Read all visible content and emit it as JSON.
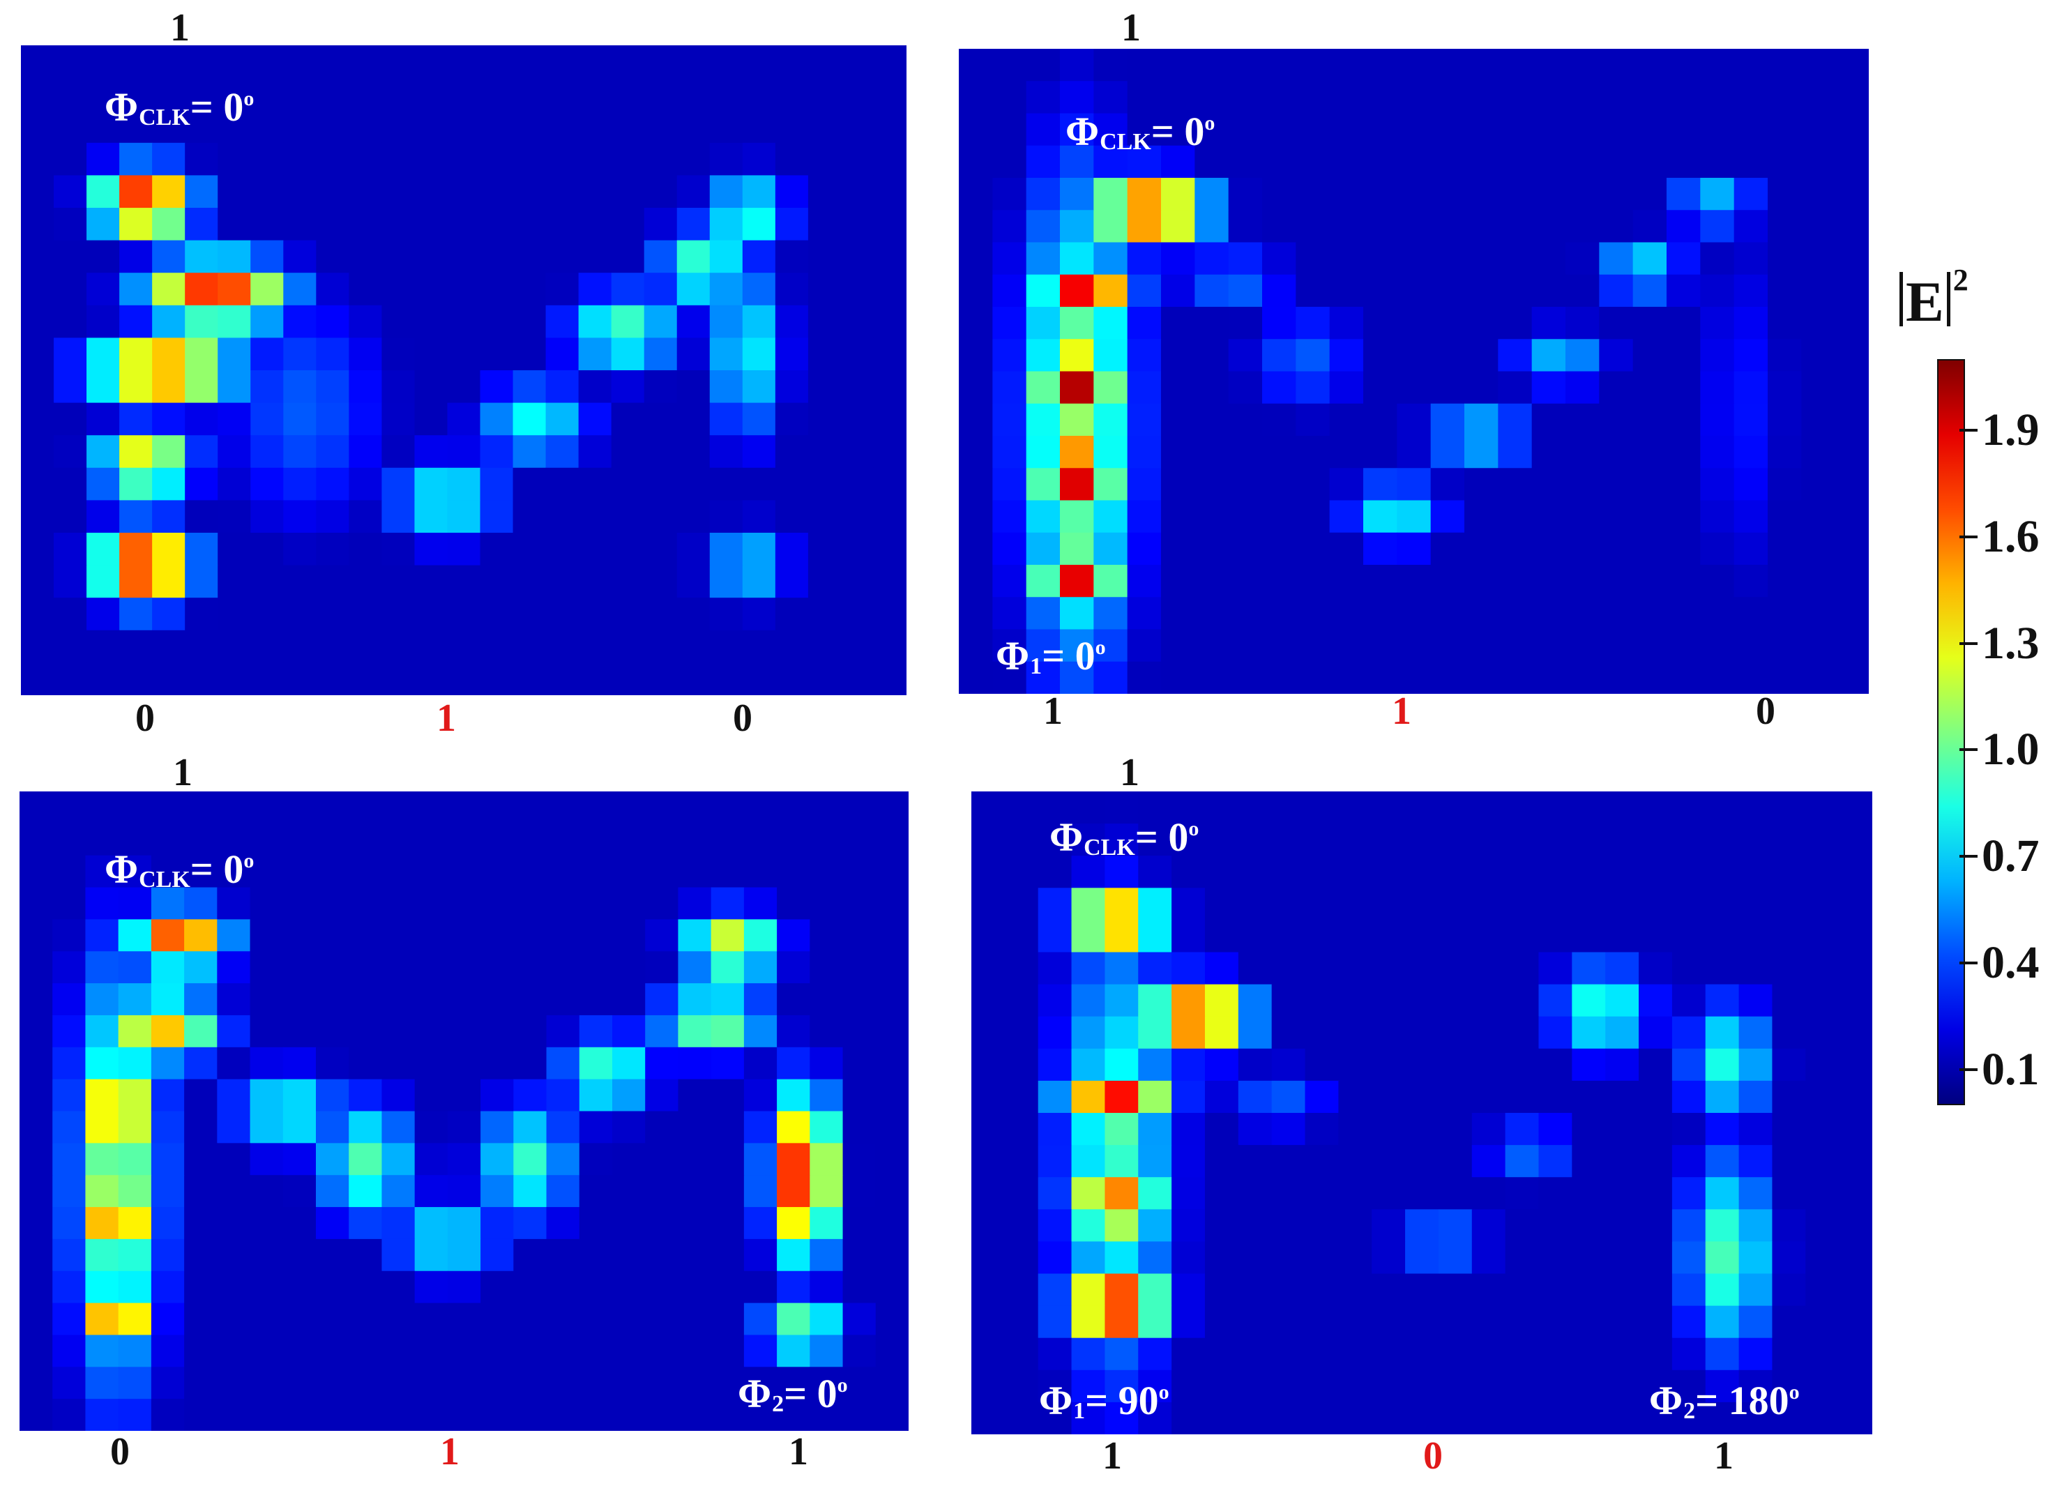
{
  "chart_data": [
    {
      "type": "heatmap",
      "id": "top-left",
      "top_label": "1",
      "bottom_labels": [
        {
          "text": "0",
          "color": "#111111"
        },
        {
          "text": "1",
          "color": "#e11919"
        },
        {
          "text": "0",
          "color": "#111111"
        }
      ],
      "phase_labels": [
        {
          "name": "Φ",
          "sub": "CLK",
          "value": "= 0",
          "deg": "o",
          "anchor": "top-left"
        }
      ],
      "intensity_blobs": [
        {
          "x": 0.14,
          "y": 0.24,
          "rx": 0.05,
          "ry": 0.05,
          "v": 1.9
        },
        {
          "x": 0.22,
          "y": 0.38,
          "rx": 0.075,
          "ry": 0.05,
          "v": 1.8
        },
        {
          "x": 0.16,
          "y": 0.5,
          "rx": 0.075,
          "ry": 0.05,
          "v": 1.75
        },
        {
          "x": 0.14,
          "y": 0.64,
          "rx": 0.05,
          "ry": 0.05,
          "v": 1.4
        },
        {
          "x": 0.14,
          "y": 0.8,
          "rx": 0.05,
          "ry": 0.055,
          "v": 2.0
        },
        {
          "x": 0.32,
          "y": 0.56,
          "rx": 0.09,
          "ry": 0.18,
          "v": 0.45
        },
        {
          "x": 0.48,
          "y": 0.7,
          "rx": 0.06,
          "ry": 0.06,
          "v": 0.85
        },
        {
          "x": 0.58,
          "y": 0.58,
          "rx": 0.06,
          "ry": 0.06,
          "v": 0.8
        },
        {
          "x": 0.68,
          "y": 0.44,
          "rx": 0.06,
          "ry": 0.06,
          "v": 0.95
        },
        {
          "x": 0.77,
          "y": 0.34,
          "rx": 0.05,
          "ry": 0.06,
          "v": 0.95
        },
        {
          "x": 0.82,
          "y": 0.26,
          "rx": 0.045,
          "ry": 0.06,
          "v": 0.9
        },
        {
          "x": 0.82,
          "y": 0.47,
          "rx": 0.04,
          "ry": 0.13,
          "v": 0.8
        },
        {
          "x": 0.82,
          "y": 0.8,
          "rx": 0.045,
          "ry": 0.055,
          "v": 0.75
        }
      ]
    },
    {
      "type": "heatmap",
      "id": "top-right",
      "top_label": "1",
      "bottom_labels": [
        {
          "text": "1",
          "color": "#111111"
        },
        {
          "text": "1",
          "color": "#e11919"
        },
        {
          "text": "0",
          "color": "#111111"
        }
      ],
      "phase_labels": [
        {
          "name": "Φ",
          "sub": "CLK",
          "value": "= 0",
          "deg": "o",
          "anchor": "top-center"
        },
        {
          "name": "Φ",
          "sub": "1",
          "value": "= 0",
          "deg": "o",
          "anchor": "bottom-left"
        }
      ],
      "intensity_blobs": [
        {
          "x": 0.21,
          "y": 0.25,
          "rx": 0.06,
          "ry": 0.05,
          "v": 1.85
        },
        {
          "x": 0.14,
          "y": 0.38,
          "rx": 0.045,
          "ry": 0.05,
          "v": 1.95
        },
        {
          "x": 0.13,
          "y": 0.52,
          "rx": 0.04,
          "ry": 0.06,
          "v": 2.0
        },
        {
          "x": 0.13,
          "y": 0.66,
          "rx": 0.04,
          "ry": 0.06,
          "v": 2.0
        },
        {
          "x": 0.13,
          "y": 0.82,
          "rx": 0.04,
          "ry": 0.05,
          "v": 1.9
        },
        {
          "x": 0.13,
          "y": 0.58,
          "rx": 0.06,
          "ry": 0.36,
          "v": 1.1
        },
        {
          "x": 0.3,
          "y": 0.36,
          "rx": 0.06,
          "ry": 0.05,
          "v": 0.5
        },
        {
          "x": 0.38,
          "y": 0.48,
          "rx": 0.06,
          "ry": 0.08,
          "v": 0.45
        },
        {
          "x": 0.48,
          "y": 0.72,
          "rx": 0.05,
          "ry": 0.05,
          "v": 0.8
        },
        {
          "x": 0.57,
          "y": 0.6,
          "rx": 0.055,
          "ry": 0.05,
          "v": 0.7
        },
        {
          "x": 0.66,
          "y": 0.48,
          "rx": 0.05,
          "ry": 0.045,
          "v": 0.65
        },
        {
          "x": 0.75,
          "y": 0.34,
          "rx": 0.045,
          "ry": 0.045,
          "v": 0.75
        },
        {
          "x": 0.83,
          "y": 0.24,
          "rx": 0.045,
          "ry": 0.04,
          "v": 0.7
        },
        {
          "x": 0.86,
          "y": 0.56,
          "rx": 0.05,
          "ry": 0.28,
          "v": 0.3
        }
      ]
    },
    {
      "type": "heatmap",
      "id": "bottom-left",
      "top_label": "1",
      "bottom_labels": [
        {
          "text": "0",
          "color": "#111111"
        },
        {
          "text": "1",
          "color": "#e11919"
        },
        {
          "text": "1",
          "color": "#111111"
        }
      ],
      "phase_labels": [
        {
          "name": "Φ",
          "sub": "CLK",
          "value": "= 0",
          "deg": "o",
          "anchor": "top-left"
        },
        {
          "name": "Φ",
          "sub": "2",
          "value": "= 0",
          "deg": "o",
          "anchor": "bottom-right"
        }
      ],
      "intensity_blobs": [
        {
          "x": 0.18,
          "y": 0.23,
          "rx": 0.05,
          "ry": 0.045,
          "v": 1.75
        },
        {
          "x": 0.16,
          "y": 0.37,
          "rx": 0.06,
          "ry": 0.05,
          "v": 1.45
        },
        {
          "x": 0.11,
          "y": 0.5,
          "rx": 0.03,
          "ry": 0.055,
          "v": 2.0
        },
        {
          "x": 0.11,
          "y": 0.66,
          "rx": 0.03,
          "ry": 0.055,
          "v": 2.0
        },
        {
          "x": 0.11,
          "y": 0.82,
          "rx": 0.03,
          "ry": 0.04,
          "v": 1.9
        },
        {
          "x": 0.11,
          "y": 0.6,
          "rx": 0.05,
          "ry": 0.32,
          "v": 1.1
        },
        {
          "x": 0.3,
          "y": 0.5,
          "rx": 0.06,
          "ry": 0.06,
          "v": 0.85
        },
        {
          "x": 0.39,
          "y": 0.58,
          "rx": 0.05,
          "ry": 0.09,
          "v": 0.95
        },
        {
          "x": 0.48,
          "y": 0.7,
          "rx": 0.06,
          "ry": 0.06,
          "v": 0.8
        },
        {
          "x": 0.57,
          "y": 0.58,
          "rx": 0.05,
          "ry": 0.09,
          "v": 0.9
        },
        {
          "x": 0.66,
          "y": 0.44,
          "rx": 0.05,
          "ry": 0.06,
          "v": 0.95
        },
        {
          "x": 0.8,
          "y": 0.24,
          "rx": 0.05,
          "ry": 0.05,
          "v": 1.3
        },
        {
          "x": 0.78,
          "y": 0.36,
          "rx": 0.06,
          "ry": 0.05,
          "v": 1.1
        },
        {
          "x": 0.88,
          "y": 0.6,
          "rx": 0.035,
          "ry": 0.12,
          "v": 1.9
        },
        {
          "x": 0.88,
          "y": 0.84,
          "rx": 0.045,
          "ry": 0.05,
          "v": 1.05
        }
      ]
    },
    {
      "type": "heatmap",
      "id": "bottom-right",
      "top_label": "1",
      "bottom_labels": [
        {
          "text": "1",
          "color": "#111111"
        },
        {
          "text": "0",
          "color": "#e11919"
        },
        {
          "text": "1",
          "color": "#111111"
        }
      ],
      "phase_labels": [
        {
          "name": "Φ",
          "sub": "CLK",
          "value": "= 0",
          "deg": "o",
          "anchor": "top-left"
        },
        {
          "name": "Φ",
          "sub": "1",
          "value": "= 90",
          "deg": "o",
          "anchor": "bottom-left"
        },
        {
          "name": "Φ",
          "sub": "2",
          "value": "= 180",
          "deg": "o",
          "anchor": "bottom-right"
        }
      ],
      "intensity_blobs": [
        {
          "x": 0.16,
          "y": 0.2,
          "rx": 0.05,
          "ry": 0.05,
          "v": 1.7
        },
        {
          "x": 0.25,
          "y": 0.35,
          "rx": 0.055,
          "ry": 0.05,
          "v": 1.9
        },
        {
          "x": 0.16,
          "y": 0.48,
          "rx": 0.055,
          "ry": 0.05,
          "v": 1.85
        },
        {
          "x": 0.16,
          "y": 0.64,
          "rx": 0.05,
          "ry": 0.05,
          "v": 1.7
        },
        {
          "x": 0.16,
          "y": 0.8,
          "rx": 0.05,
          "ry": 0.055,
          "v": 2.0
        },
        {
          "x": 0.16,
          "y": 0.56,
          "rx": 0.06,
          "ry": 0.34,
          "v": 0.9
        },
        {
          "x": 0.34,
          "y": 0.48,
          "rx": 0.06,
          "ry": 0.05,
          "v": 0.45
        },
        {
          "x": 0.52,
          "y": 0.7,
          "rx": 0.05,
          "ry": 0.05,
          "v": 0.55
        },
        {
          "x": 0.62,
          "y": 0.56,
          "rx": 0.05,
          "ry": 0.05,
          "v": 0.5
        },
        {
          "x": 0.7,
          "y": 0.34,
          "rx": 0.05,
          "ry": 0.07,
          "v": 0.9
        },
        {
          "x": 0.84,
          "y": 0.42,
          "rx": 0.045,
          "ry": 0.09,
          "v": 0.85
        },
        {
          "x": 0.84,
          "y": 0.72,
          "rx": 0.045,
          "ry": 0.15,
          "v": 0.95
        }
      ]
    }
  ],
  "colorbar": {
    "label": "E",
    "label_power": "2",
    "range": [
      0,
      2.1
    ],
    "ticks": [
      "1.9",
      "1.6",
      "1.3",
      "1.0",
      "0.7",
      "0.4",
      "0.1"
    ],
    "colormap": "jet"
  },
  "colors": {
    "background_blue": "#0a22c8",
    "label_red": "#e11919",
    "label_dark": "#111111"
  }
}
